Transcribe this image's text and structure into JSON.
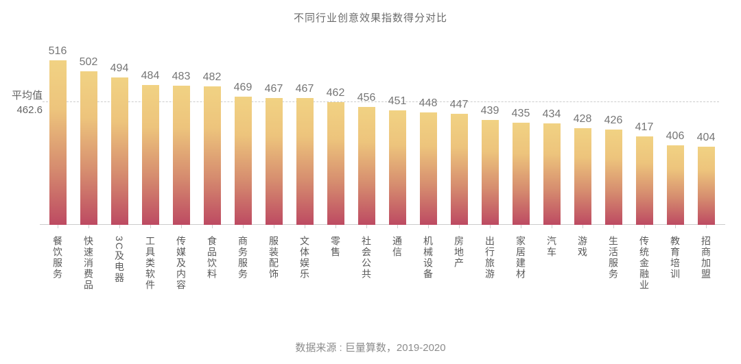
{
  "chart_data": {
    "type": "bar",
    "title": "不同行业创意效果指数得分对比",
    "categories": [
      "餐饮服务",
      "快速消费品",
      "3C及电器",
      "工具类软件",
      "传媒及内容",
      "食品饮料",
      "商务服务",
      "服装配饰",
      "文体娱乐",
      "零售",
      "社会公共",
      "通信",
      "机械设备",
      "房地产",
      "出行旅游",
      "家居建材",
      "汽车",
      "游戏",
      "生活服务",
      "传统金融业",
      "教育培训",
      "招商加盟"
    ],
    "values": [
      516,
      502,
      494,
      484,
      483,
      482,
      469,
      467,
      467,
      462,
      456,
      451,
      448,
      447,
      439,
      435,
      434,
      428,
      426,
      417,
      406,
      404
    ],
    "average": {
      "label": "平均值",
      "value": 462.6,
      "value_text": "462.6"
    },
    "source": "数据来源 : 巨量算数，2019-2020",
    "xlabel": "",
    "ylabel": "",
    "ylim": [
      302,
      530
    ],
    "grid": "off",
    "legend": "none",
    "colors": {
      "bar_gradient_top": "#F1D283",
      "bar_gradient_bottom": "#BD4A62",
      "average_line": "#CCCCCC",
      "axis": "#CCCCCC",
      "title_text": "#6B6B6B",
      "value_text": "#757575",
      "category_text": "#595959",
      "source_text": "#8C8C8C"
    }
  }
}
